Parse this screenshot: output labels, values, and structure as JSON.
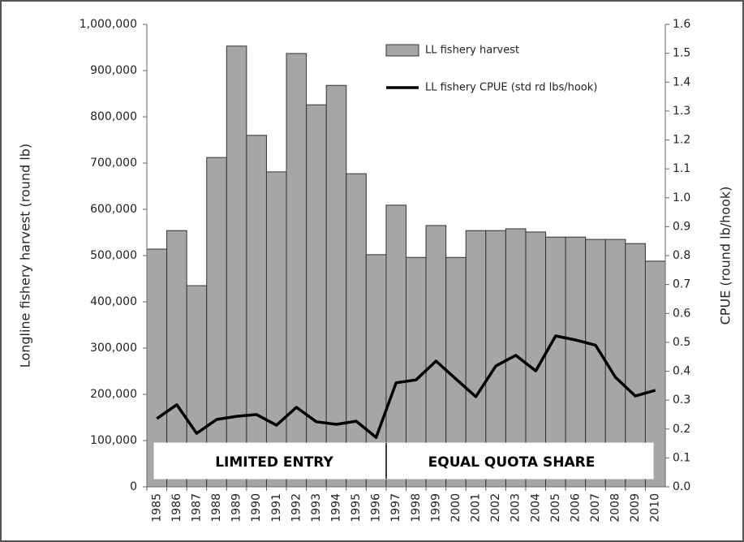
{
  "chart_data": {
    "type": "bar",
    "y_label": "Longline fishery harvest (round lb)",
    "y2_label": "CPUE (round lb/hook)",
    "categories": [
      "1985",
      "1986",
      "1987",
      "1988",
      "1989",
      "1990",
      "1991",
      "1992",
      "1993",
      "1994",
      "1995",
      "1996",
      "1997",
      "1998",
      "1999",
      "2000",
      "2001",
      "2002",
      "2003",
      "2004",
      "2005",
      "2006",
      "2007",
      "2008",
      "2009",
      "2010"
    ],
    "series": [
      {
        "name": "LL fishery harvest",
        "type": "bar",
        "color": "#a6a6a6",
        "values": [
          514000,
          554000,
          435000,
          712000,
          953000,
          760000,
          681000,
          937000,
          826000,
          868000,
          677000,
          502000,
          609000,
          496000,
          565000,
          496000,
          554000,
          554000,
          558000,
          551000,
          540000,
          540000,
          535000,
          535000,
          526000,
          488000
        ]
      },
      {
        "name": "LL fishery CPUE (std rd lbs/hook)",
        "type": "line",
        "color": "#000000",
        "axis": "y2",
        "values": [
          0.236,
          0.284,
          0.185,
          0.233,
          0.244,
          0.25,
          0.213,
          0.275,
          0.225,
          0.216,
          0.227,
          0.171,
          0.36,
          0.37,
          0.435,
          0.373,
          0.312,
          0.418,
          0.455,
          0.401,
          0.522,
          0.508,
          0.49,
          0.379,
          0.314,
          0.334
        ]
      }
    ],
    "ylim": [
      0,
      1000000
    ],
    "yticks": [
      0,
      {
        "value": 100000,
        "label": "100,000"
      },
      {
        "value": 200000,
        "label": "200,000"
      },
      {
        "value": 300000,
        "label": "300,000"
      },
      {
        "value": 400000,
        "label": "400,000"
      },
      {
        "value": 500000,
        "label": "500,000"
      },
      {
        "value": 600000,
        "label": "600,000"
      },
      {
        "value": 700000,
        "label": "700,000"
      },
      {
        "value": 800000,
        "label": "800,000"
      },
      {
        "value": 900000,
        "label": "900,000"
      },
      {
        "value": 1000000,
        "label": "1,000,000"
      }
    ],
    "y2lim": [
      0,
      1.6
    ],
    "y2ticks": [
      {
        "value": 0,
        "label": "0.0"
      },
      0.1,
      0.2,
      0.3,
      0.4,
      0.5,
      0.6,
      0.7,
      0.8,
      0.9,
      {
        "value": 1,
        "label": "1.0"
      },
      1.1,
      1.2,
      1.3,
      1.4,
      1.5,
      1.6
    ],
    "annotations": [
      "LIMITED ENTRY",
      "EQUAL QUOTA SHARE"
    ],
    "grid": false
  }
}
